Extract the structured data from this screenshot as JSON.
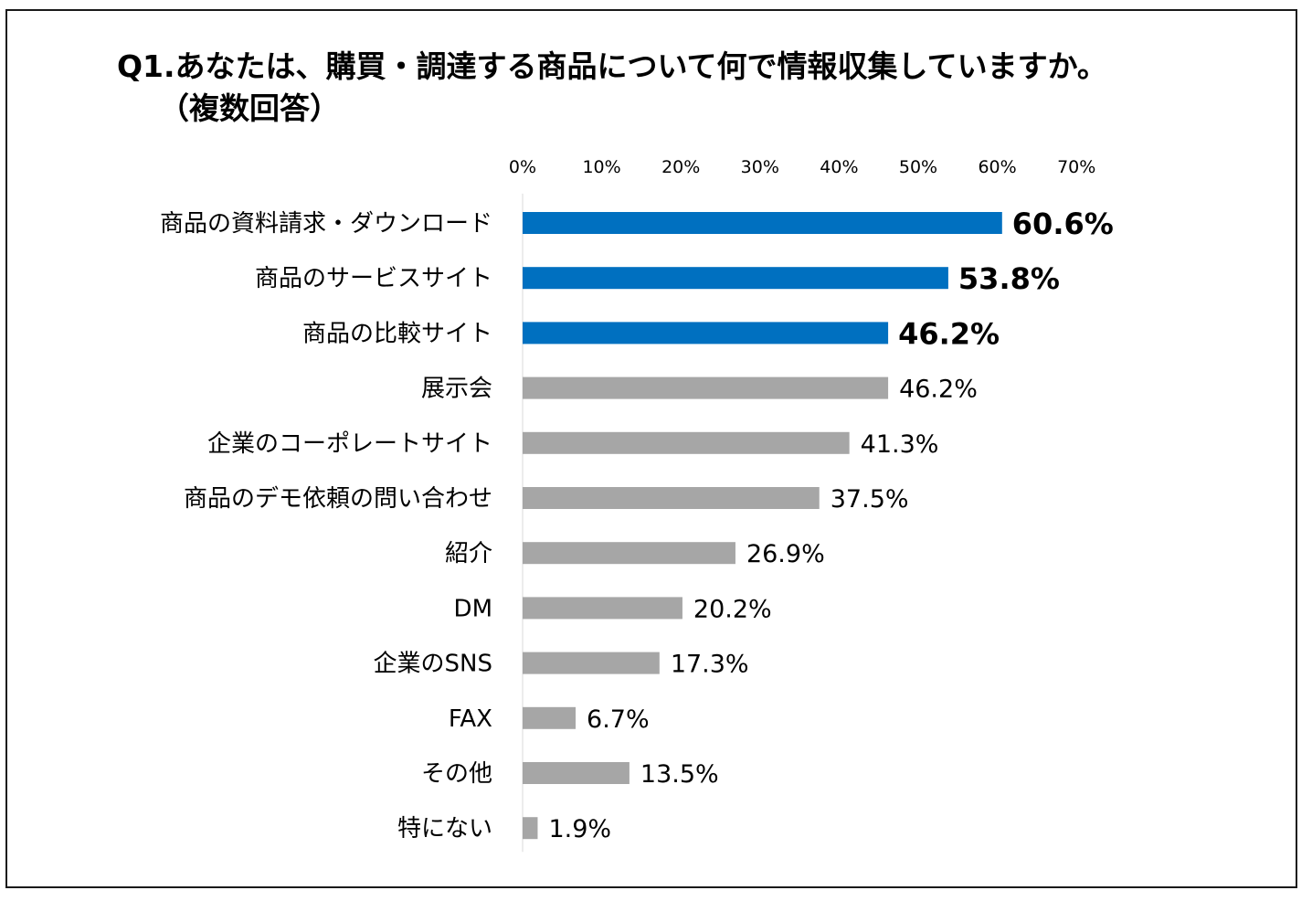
{
  "title": {
    "line1": "Q1.あなたは、購買・調達する商品について何で情報収集していますか。",
    "line2": "（複数回答）"
  },
  "colors": {
    "highlight": "#0070c0",
    "default": "#a6a6a6",
    "axis": "#d9d9d9",
    "text": "#000000"
  },
  "chart_data": {
    "type": "bar",
    "orientation": "horizontal",
    "title": "Q1.あなたは、購買・調達する商品について何で情報収集していますか。（複数回答）",
    "xlim": [
      0,
      70
    ],
    "x_ticks": [
      "0%",
      "10%",
      "20%",
      "30%",
      "40%",
      "50%",
      "60%",
      "70%"
    ],
    "x_tick_values": [
      0,
      10,
      20,
      30,
      40,
      50,
      60,
      70
    ],
    "x_axis_position": "top",
    "grid": false,
    "legend": "none",
    "unit": "%",
    "categories": [
      "商品の資料請求・ダウンロード",
      "商品のサービスサイト",
      "商品の比較サイト",
      "展示会",
      "企業のコーポレートサイト",
      "商品のデモ依頼の問い合わせ",
      "紹介",
      "DM",
      "企業のSNS",
      "FAX",
      "その他",
      "特にない"
    ],
    "values": [
      60.6,
      53.8,
      46.2,
      46.2,
      41.3,
      37.5,
      26.9,
      20.2,
      17.3,
      6.7,
      13.5,
      1.9
    ],
    "value_labels": [
      "60.6%",
      "53.8%",
      "46.2%",
      "46.2%",
      "41.3%",
      "37.5%",
      "26.9%",
      "20.2%",
      "17.3%",
      "6.7%",
      "13.5%",
      "1.9%"
    ],
    "highlighted": [
      true,
      true,
      true,
      false,
      false,
      false,
      false,
      false,
      false,
      false,
      false,
      false
    ]
  }
}
